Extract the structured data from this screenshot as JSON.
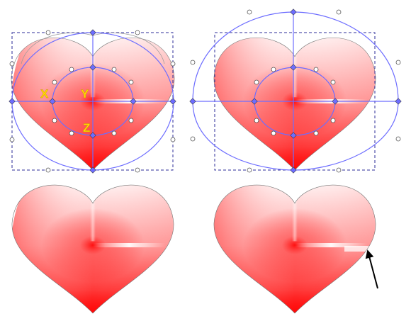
{
  "panels": [
    {
      "id": "top-left",
      "mode": "gradient-editing",
      "ellipse_overflow": "clipped"
    },
    {
      "id": "top-right",
      "mode": "gradient-editing",
      "ellipse_overflow": "extended"
    },
    {
      "id": "bottom-left",
      "mode": "result",
      "artifact": "clipped-corners"
    },
    {
      "id": "bottom-right",
      "mode": "result",
      "artifact": "seam-line"
    }
  ],
  "handle_labels": {
    "x": "X",
    "y": "Y",
    "z": "Z"
  },
  "colors": {
    "gradient_red": "#ff0000",
    "gradient_white": "#ffffff",
    "guide_blue": "#6d6dff",
    "selection_dash": "#2d2d9a",
    "handle_label_yellow": "#ffd700",
    "arrow": "#000000"
  },
  "icons": [
    "heart-shape",
    "conical-gradient",
    "transform-handle",
    "pointer-arrow"
  ]
}
